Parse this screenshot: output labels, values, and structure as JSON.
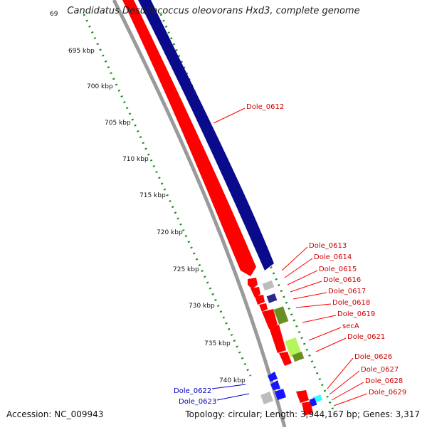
{
  "title": "Candidatus Desulfococcus oleovorans Hxd3, complete genome",
  "accession": "Accession: NC_009943",
  "summary": "Topology: circular; Length: 3,944,167 bp; Genes: 3,317",
  "colors": {
    "forward_feature": "#ff0000",
    "reverse_feature": "#0a0a8c",
    "reverse_label": "#0000cc",
    "forward_label": "#cc0000",
    "tick": "#1a8a1a",
    "backbone": "#999999",
    "gene_olive": "#6b8e23",
    "gene_lime": "#b5f55a",
    "gene_grey": "#bdbdbd",
    "gene_cyan": "#33ffff",
    "gene_blue": "#1414ff"
  },
  "axis_labels": [
    "695 kbp",
    "700 kbp",
    "705 kbp",
    "710 kbp",
    "715 kbp",
    "720 kbp",
    "725 kbp",
    "730 kbp",
    "735 kbp",
    "740 kbp"
  ],
  "top_partial_label": "69",
  "forward_gene_labels": [
    "Dole_0612",
    "Dole_0613",
    "Dole_0614",
    "Dole_0615",
    "Dole_0616",
    "Dole_0617",
    "Dole_0618",
    "Dole_0619",
    "secA",
    "Dole_0621",
    "Dole_0626",
    "Dole_0627",
    "Dole_0628",
    "Dole_0629"
  ],
  "reverse_gene_labels": [
    "Dole_0622",
    "Dole_0623"
  ]
}
